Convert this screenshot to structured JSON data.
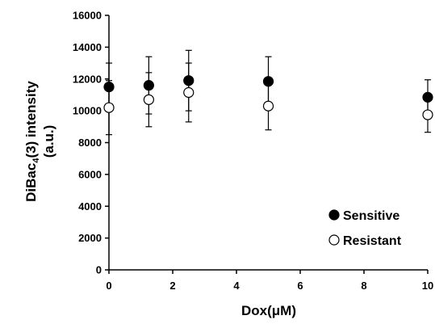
{
  "chart_data": {
    "type": "scatter",
    "title": "",
    "xlabel": "Dox(μM)",
    "ylabel_main": "DiBac",
    "ylabel_sub": "4",
    "ylabel_rest": "(3) intensity",
    "ylabel_line2": "(a.u.)",
    "xlim": [
      0,
      10
    ],
    "ylim": [
      0,
      16000
    ],
    "x_ticks": [
      "0",
      "2",
      "4",
      "6",
      "8",
      "10"
    ],
    "y_ticks": [
      "0",
      "2000",
      "4000",
      "6000",
      "8000",
      "10000",
      "12000",
      "14000",
      "16000"
    ],
    "legend_position": "bottom-right",
    "series": [
      {
        "name": "Sensitive",
        "marker": "filled-circle",
        "color": "#000000",
        "x": [
          0,
          1.25,
          2.5,
          5,
          10
        ],
        "y": [
          11500,
          11600,
          11900,
          11850,
          10850
        ],
        "err": [
          1500,
          1800,
          1900,
          1550,
          1100
        ]
      },
      {
        "name": "Resistant",
        "marker": "open-circle",
        "color": "#000000",
        "x": [
          0,
          1.25,
          2.5,
          5,
          10
        ],
        "y": [
          10200,
          10700,
          11150,
          10300,
          9750
        ],
        "err": [
          1700,
          1700,
          1850,
          1500,
          1100
        ]
      }
    ]
  }
}
